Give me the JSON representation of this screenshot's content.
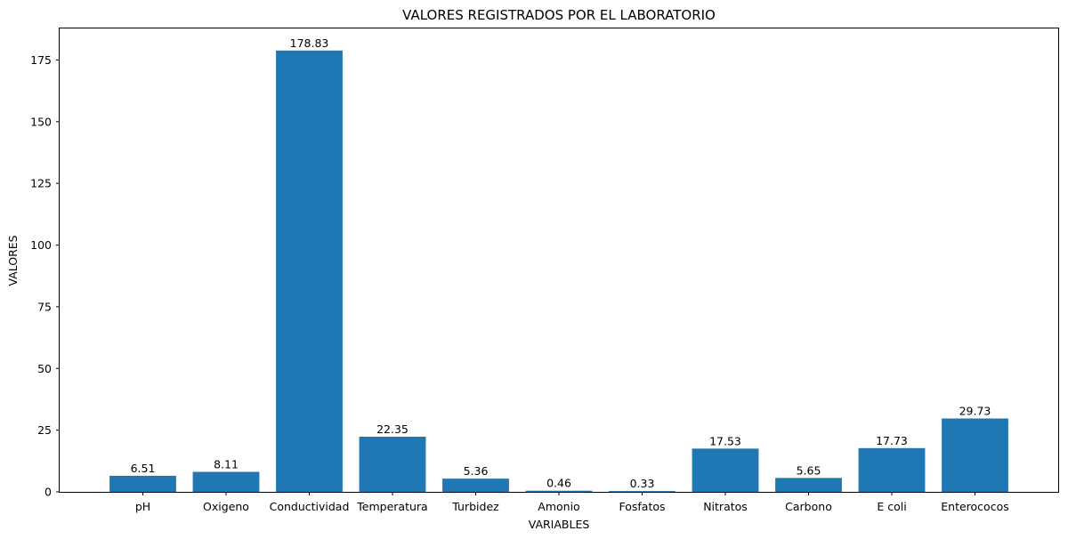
{
  "chart_data": {
    "type": "bar",
    "title": "VALORES REGISTRADOS POR EL LABORATORIO",
    "xlabel": "VARIABLES",
    "ylabel": "VALORES",
    "categories": [
      "pH",
      "Oxigeno",
      "Conductividad",
      "Temperatura",
      "Turbidez",
      "Amonio",
      "Fosfatos",
      "Nitratos",
      "Carbono",
      "E coli",
      "Enterococos"
    ],
    "values": [
      6.51,
      8.11,
      178.83,
      22.35,
      5.36,
      0.46,
      0.33,
      17.53,
      5.65,
      17.73,
      29.73
    ],
    "data_labels": [
      "6.51",
      "8.11",
      "178.83",
      "22.35",
      "5.36",
      "0.46",
      "0.33",
      "17.53",
      "5.65",
      "17.73",
      "29.73"
    ],
    "ylim": [
      0,
      187.77
    ],
    "yticks": [
      0,
      25,
      50,
      75,
      100,
      125,
      150,
      175
    ],
    "bar_color": "#1f77b4",
    "grid": false,
    "legend": "none"
  }
}
